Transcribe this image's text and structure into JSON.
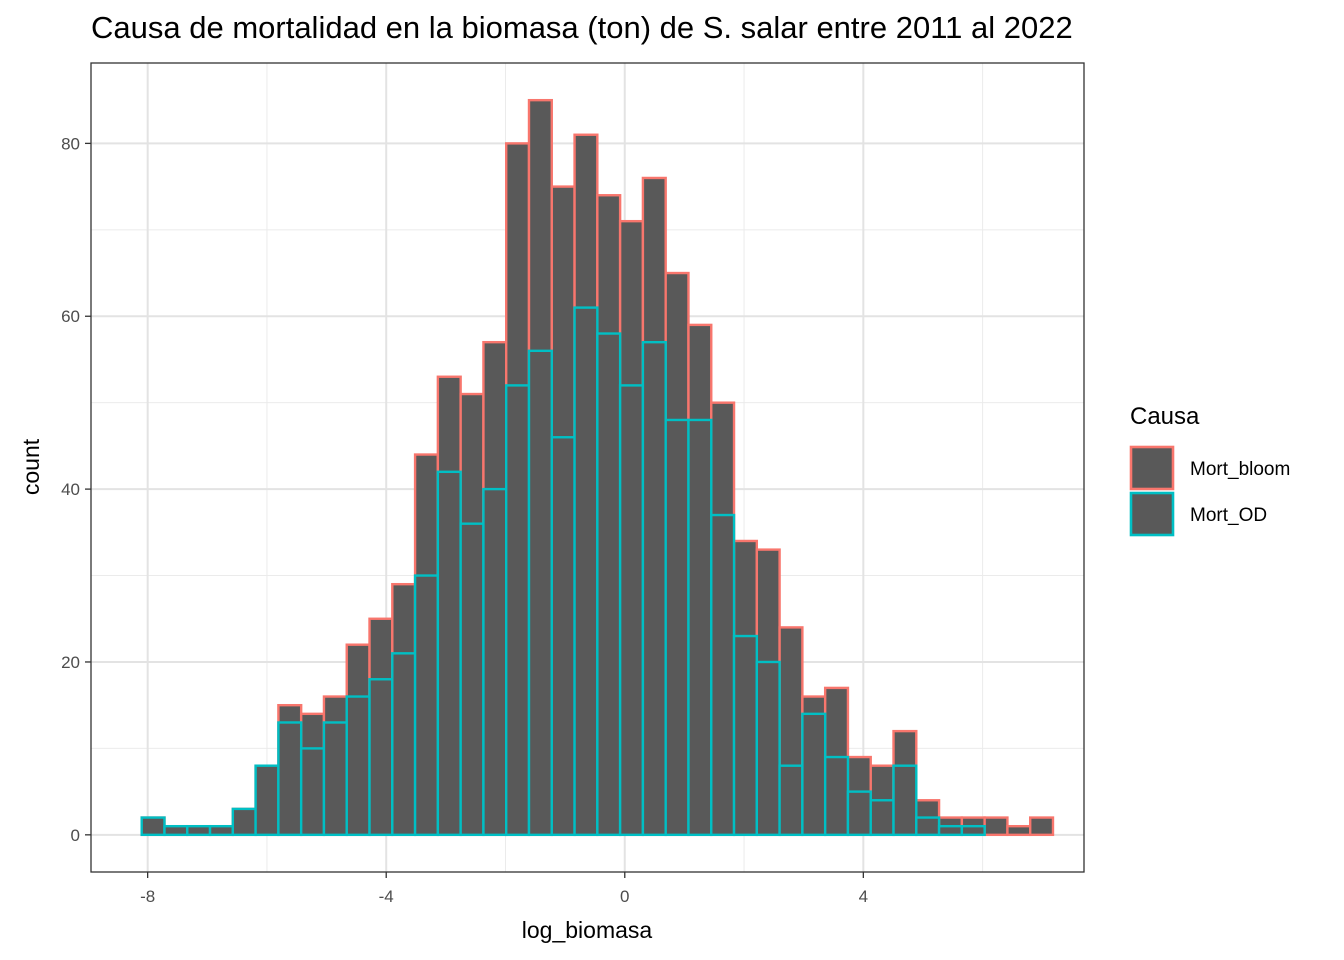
{
  "chart_data": {
    "type": "bar",
    "title": "Causa de mortalidad en la biomasa (ton) de S. salar entre 2011 al 2022",
    "xlabel": "log_biomasa",
    "ylabel": "count",
    "xlim": [
      -8.95,
      7.7
    ],
    "ylim": [
      -4.3,
      89.3
    ],
    "x_ticks": [
      -8,
      -4,
      0,
      4
    ],
    "x_tick_labels": [
      "-8",
      "-4",
      "0",
      "4"
    ],
    "y_ticks": [
      0,
      20,
      40,
      60,
      80
    ],
    "y_tick_labels": [
      "0",
      "20",
      "40",
      "60",
      "80"
    ],
    "bins": {
      "start": -8.1,
      "width": 0.382
    },
    "grid": true,
    "legend": {
      "title": "Causa",
      "placement": "right",
      "fill_color": "#595959"
    },
    "series": [
      {
        "name": "Mort_bloom",
        "color": "#F8766D",
        "values": [
          2,
          1,
          1,
          1,
          3,
          8,
          15,
          14,
          16,
          22,
          25,
          29,
          44,
          53,
          51,
          57,
          80,
          85,
          75,
          81,
          74,
          71,
          76,
          65,
          59,
          50,
          34,
          33,
          24,
          16,
          17,
          9,
          8,
          12,
          4,
          2,
          2,
          2,
          1,
          2
        ]
      },
      {
        "name": "Mort_OD",
        "color": "#00BFC4",
        "values": [
          2,
          1,
          1,
          1,
          3,
          8,
          13,
          10,
          13,
          16,
          18,
          21,
          30,
          42,
          36,
          40,
          52,
          56,
          46,
          61,
          58,
          52,
          57,
          48,
          48,
          37,
          23,
          20,
          8,
          14,
          9,
          5,
          4,
          8,
          2,
          1,
          1,
          0,
          0,
          0
        ]
      }
    ]
  }
}
